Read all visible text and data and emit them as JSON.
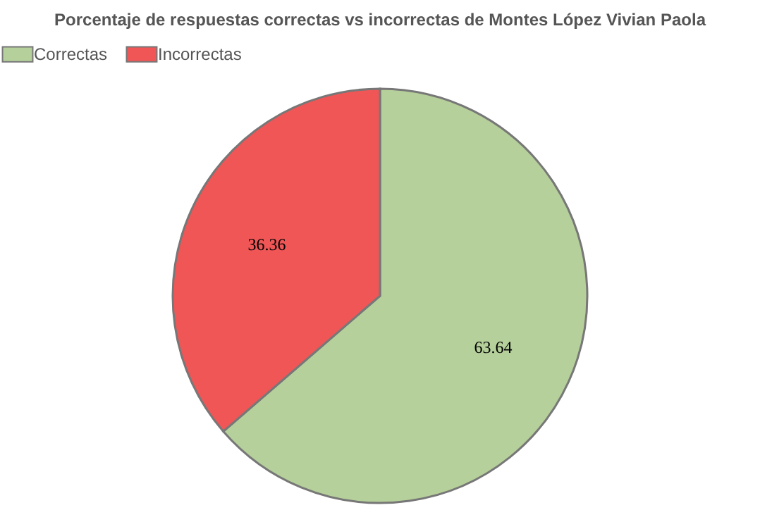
{
  "chart_data": {
    "type": "pie",
    "title": "Porcentaje de respuestas correctas vs incorrectas de  Montes López Vivian Paola",
    "categories": [
      "Correctas",
      "Incorrectas"
    ],
    "values": [
      63.64,
      36.36
    ],
    "colors": [
      "#b5d09a",
      "#f05656"
    ],
    "data_labels": true,
    "legend": "top"
  }
}
